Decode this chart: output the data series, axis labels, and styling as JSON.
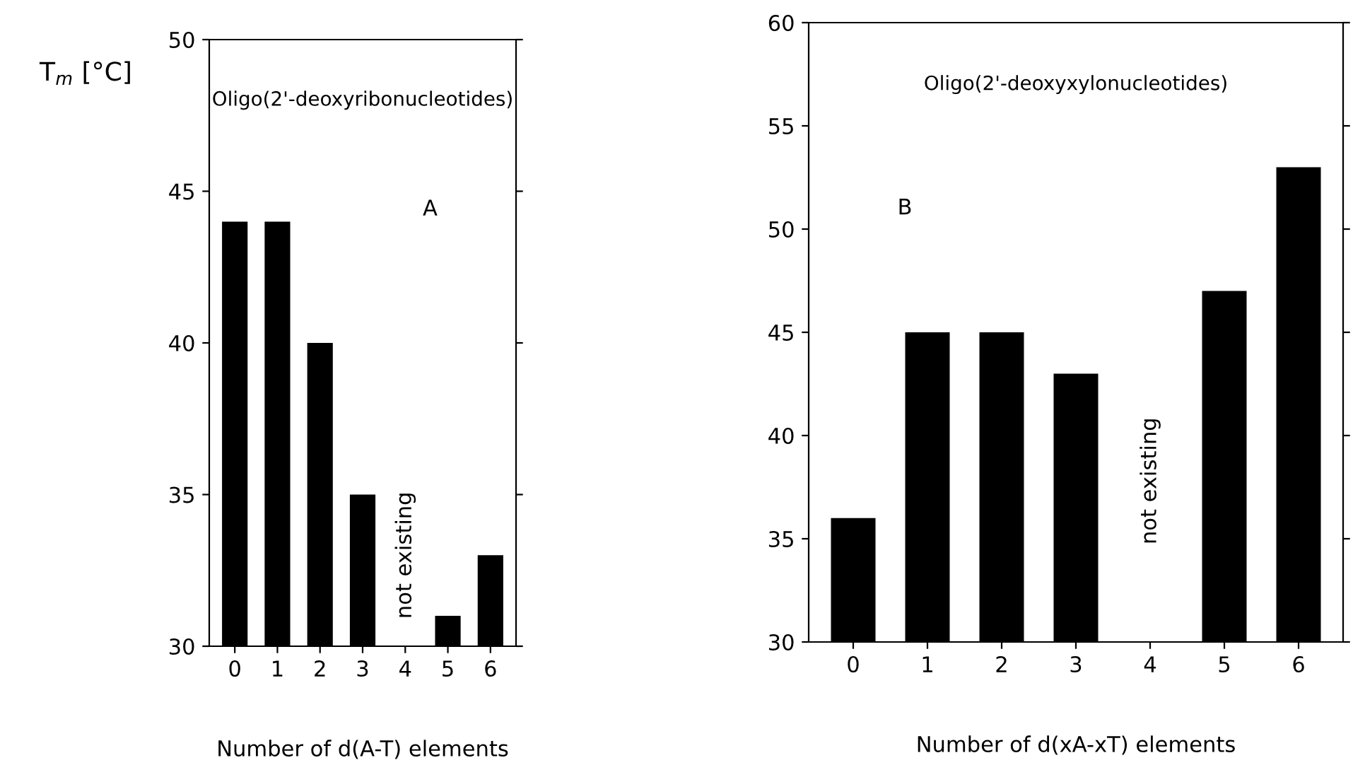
{
  "chart_data": [
    {
      "type": "bar",
      "title": "Oligo(2'-deoxyribonucleotides)",
      "xlabel": "Number of d(A-T) elements",
      "ylabel": "T$_{m}$ [°C]",
      "categories": [
        "0",
        "1",
        "2",
        "3",
        "4",
        "5",
        "6"
      ],
      "values": [
        44,
        44,
        40,
        35,
        null,
        31,
        33
      ],
      "color": "#000000",
      "ylim": [
        30,
        50
      ],
      "yticks": [
        30,
        35,
        40,
        45,
        50
      ],
      "grid": false,
      "annotations": [
        "A",
        "not existing"
      ]
    },
    {
      "type": "bar",
      "title": "Oligo(2'-deoxyxylonucleotides)",
      "xlabel": "Number of d(xA-xT) elements",
      "categories": [
        "0",
        "1",
        "2",
        "3",
        "4",
        "5",
        "6"
      ],
      "values": [
        36,
        45,
        45,
        43,
        null,
        47,
        53
      ],
      "color": "#000000",
      "ylim": [
        30,
        60
      ],
      "yticks": [
        30,
        35,
        40,
        45,
        50,
        55,
        60
      ],
      "grid": false,
      "annotations": [
        "B",
        "not existing"
      ]
    }
  ]
}
